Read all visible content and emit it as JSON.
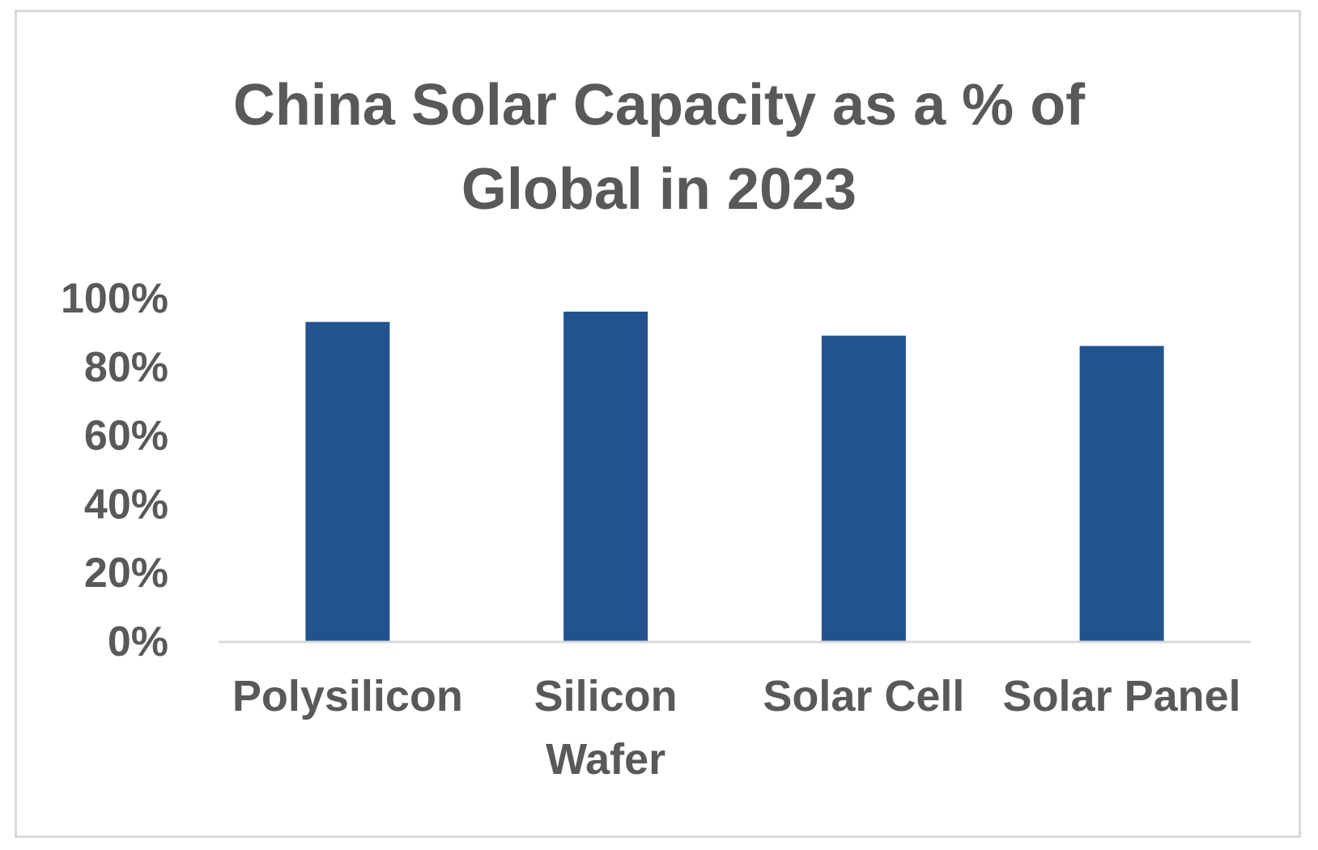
{
  "chart_data": {
    "type": "bar",
    "title_lines": [
      "China Solar Capacity as a % of",
      "Global in 2023"
    ],
    "categories": [
      [
        "Polysilicon"
      ],
      [
        "Silicon",
        "Wafer"
      ],
      [
        "Solar Cell"
      ],
      [
        "Solar Panel"
      ]
    ],
    "values": [
      93,
      96,
      89,
      86
    ],
    "y_ticks": [
      {
        "value": 0,
        "label": "0%"
      },
      {
        "value": 20,
        "label": "20%"
      },
      {
        "value": 40,
        "label": "40%"
      },
      {
        "value": 60,
        "label": "60%"
      },
      {
        "value": 80,
        "label": "80%"
      },
      {
        "value": 100,
        "label": "100%"
      }
    ],
    "ylim": [
      0,
      100
    ],
    "xlabel": "",
    "ylabel": "",
    "grid": false,
    "legend": "none",
    "bar_color": "#23538f",
    "axis_color": "#d9d9d9",
    "text_color": "#595959"
  }
}
